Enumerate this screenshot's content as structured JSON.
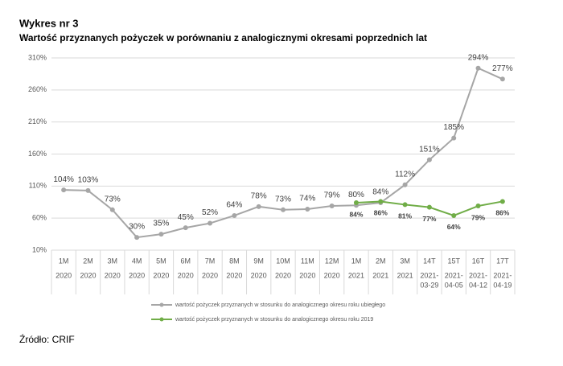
{
  "chart_data": {
    "type": "line",
    "title": "Wykres nr 3",
    "subtitle": "Wartość przyznanych pożyczek w porównaniu z analogicznymi okresami poprzednich lat",
    "source": "Źródło: CRIF",
    "categories": [
      [
        "1M",
        "2020"
      ],
      [
        "2M",
        "2020"
      ],
      [
        "3M",
        "2020"
      ],
      [
        "4M",
        "2020"
      ],
      [
        "5M",
        "2020"
      ],
      [
        "6M",
        "2020"
      ],
      [
        "7M",
        "2020"
      ],
      [
        "8M",
        "2020"
      ],
      [
        "9M",
        "2020"
      ],
      [
        "10M",
        "2020"
      ],
      [
        "11M",
        "2020"
      ],
      [
        "12M",
        "2020"
      ],
      [
        "1M",
        "2021"
      ],
      [
        "2M",
        "2021"
      ],
      [
        "3M",
        "2021"
      ],
      [
        "14T",
        "2021-",
        "03-29"
      ],
      [
        "15T",
        "2021-",
        "04-05"
      ],
      [
        "16T",
        "2021-",
        "04-12"
      ],
      [
        "17T",
        "2021-",
        "04-19"
      ]
    ],
    "series": [
      {
        "name": "wartość pożyczek przyznanych w stosunku do analogicznego okresu roku ubiegłego",
        "color": "#a6a6a6",
        "values": [
          104,
          103,
          73,
          30,
          35,
          45,
          52,
          64,
          78,
          73,
          74,
          79,
          80,
          84,
          112,
          151,
          185,
          294,
          277
        ],
        "value_labels": [
          "104%",
          "103%",
          "73%",
          "30%",
          "35%",
          "45%",
          "52%",
          "64%",
          "78%",
          "73%",
          "74%",
          "79%",
          "80%",
          "84%",
          "112%",
          "151%",
          "185%",
          "294%",
          "277%"
        ]
      },
      {
        "name": "wartość pożyczek przyznanych w stosunku do analogicznego okresu roku 2019",
        "color": "#70ad47",
        "values": [
          null,
          null,
          null,
          null,
          null,
          null,
          null,
          null,
          null,
          null,
          null,
          null,
          84,
          86,
          81,
          77,
          64,
          79,
          86
        ],
        "value_labels": [
          null,
          null,
          null,
          null,
          null,
          null,
          null,
          null,
          null,
          null,
          null,
          null,
          "84%",
          "86%",
          "81%",
          "77%",
          "64%",
          "79%",
          "86%"
        ]
      }
    ],
    "ylim": [
      10,
      310
    ],
    "yticks": [
      {
        "value": 10,
        "label": "10%"
      },
      {
        "value": 60,
        "label": "60%"
      },
      {
        "value": 110,
        "label": "110%"
      },
      {
        "value": 160,
        "label": "160%"
      },
      {
        "value": 210,
        "label": "210%"
      },
      {
        "value": 260,
        "label": "260%"
      },
      {
        "value": 310,
        "label": "310%"
      }
    ],
    "grid": true
  }
}
